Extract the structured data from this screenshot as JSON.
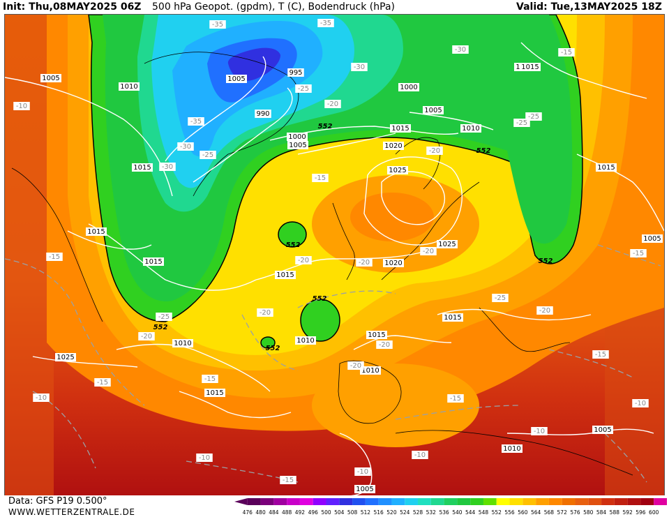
{
  "header": {
    "init": "Init: Thu,08MAY2025 06Z",
    "title": "500 hPa Geopot. (gpdm), T (C), Bodendruck (hPa)",
    "valid": "Valid: Tue,13MAY2025 18Z"
  },
  "footer": {
    "source": "Data: GFS P19 0.500°",
    "site": "WWW.WETTERZENTRALE.DE"
  },
  "colorscale": {
    "levels": [
      "476",
      "480",
      "484",
      "488",
      "492",
      "496",
      "500",
      "504",
      "508",
      "512",
      "516",
      "520",
      "524",
      "528",
      "532",
      "536",
      "540",
      "544",
      "548",
      "552",
      "556",
      "560",
      "564",
      "568",
      "572",
      "576",
      "580",
      "584",
      "588",
      "592",
      "596",
      "600"
    ],
    "colors": [
      "#5a005a",
      "#7a007a",
      "#a000a0",
      "#c800c8",
      "#e000e0",
      "#9000ff",
      "#6020ff",
      "#3030e0",
      "#2050f0",
      "#2070ff",
      "#2090ff",
      "#20b0ff",
      "#20d0f0",
      "#20e0c0",
      "#20d890",
      "#20d060",
      "#20c840",
      "#30d020",
      "#60e000",
      "#ffff00",
      "#ffe000",
      "#ffc000",
      "#ffa000",
      "#ff8800",
      "#f07000",
      "#e86010",
      "#e05010",
      "#d03010",
      "#c02010",
      "#b01010",
      "#a00010",
      "#e000a0"
    ]
  },
  "contours": {
    "pressure_labels": [
      "1005",
      "1010",
      "1005",
      "995",
      "990",
      "1000",
      "1000",
      "1005",
      "1015",
      "1020",
      "1025",
      "1005",
      "1010",
      "1015",
      "1015",
      "1025",
      "1015",
      "1015",
      "1020",
      "1015",
      "1010",
      "1015",
      "1025",
      "1015",
      "1010",
      "1010",
      "1005",
      "1010",
      "1005",
      "1015",
      "1015",
      "1005",
      "1015"
    ],
    "temp_labels": [
      "-35",
      "-35",
      "-30",
      "-25",
      "-20",
      "-35",
      "-30",
      "-30",
      "-25",
      "-30",
      "-15",
      "-25",
      "-25",
      "-20",
      "-15",
      "-20",
      "-20",
      "-20",
      "-25",
      "-20",
      "-25",
      "-20",
      "-20",
      "-15",
      "-15",
      "-15",
      "-10",
      "-10",
      "-10",
      "-10",
      "-10",
      "-10",
      "-15",
      "-15",
      "-15",
      "-15",
      "-10",
      "-20",
      "-20"
    ],
    "geopot_labels": [
      "552",
      "552",
      "552",
      "552",
      "552",
      "552",
      "552"
    ]
  }
}
